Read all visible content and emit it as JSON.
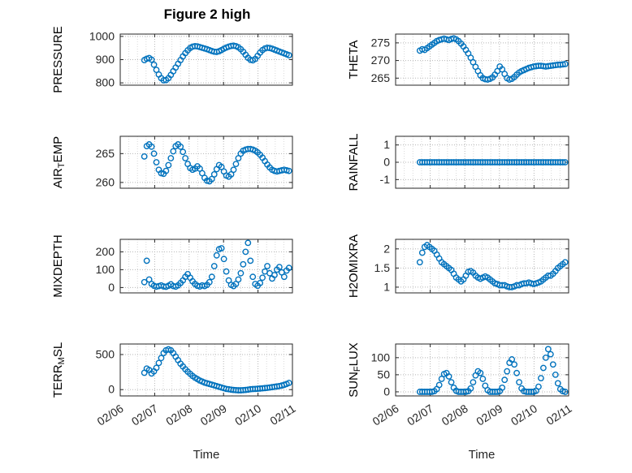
{
  "figure": {
    "title": "Figure 2 high",
    "xlabel": "Time",
    "colors": {
      "marker": "#0072BD",
      "grid": "#b5b5b5",
      "grid_minor": "#d9d9d9",
      "axis": "#262626"
    }
  },
  "chart_data": {
    "type": "scatter",
    "layout": "4x2 subplot grid, shared time axis",
    "x_label": "Time",
    "x_tick_labels": [
      "02/06",
      "02/07",
      "02/08",
      "02/09",
      "02/10",
      "02/11"
    ],
    "x_tick_values": [
      0,
      1,
      2,
      3,
      4,
      5
    ],
    "x_unit": "days since 02/06",
    "time_days": [
      0.7,
      0.77,
      0.84,
      0.91,
      0.98,
      1.05,
      1.12,
      1.19,
      1.26,
      1.33,
      1.4,
      1.47,
      1.54,
      1.61,
      1.68,
      1.75,
      1.82,
      1.89,
      1.96,
      2.03,
      2.1,
      2.17,
      2.24,
      2.31,
      2.38,
      2.45,
      2.52,
      2.59,
      2.66,
      2.73,
      2.8,
      2.87,
      2.94,
      3.01,
      3.08,
      3.15,
      3.22,
      3.29,
      3.36,
      3.43,
      3.5,
      3.57,
      3.64,
      3.71,
      3.78,
      3.85,
      3.92,
      3.99,
      4.06,
      4.13,
      4.2,
      4.27,
      4.34,
      4.41,
      4.48,
      4.55,
      4.62,
      4.69,
      4.76,
      4.83,
      4.9
    ],
    "subplots": [
      {
        "name": "PRESSURE",
        "ylabel_parts": [
          [
            "PRESSURE",
            false
          ]
        ],
        "yticks": [
          800,
          900,
          1000
        ],
        "ylim": [
          790,
          1010
        ],
        "values": [
          898,
          904,
          907,
          900,
          878,
          856,
          836,
          820,
          811,
          812,
          820,
          834,
          850,
          866,
          882,
          898,
          914,
          928,
          940,
          950,
          956,
          958,
          957,
          954,
          951,
          948,
          945,
          941,
          937,
          934,
          933,
          936,
          941,
          947,
          952,
          956,
          959,
          960,
          958,
          953,
          945,
          934,
          921,
          908,
          899,
          897,
          903,
          916,
          930,
          941,
          948,
          951,
          950,
          947,
          943,
          939,
          935,
          931,
          927,
          923,
          919
        ]
      },
      {
        "name": "THETA",
        "ylabel_parts": [
          [
            "THETA",
            false
          ]
        ],
        "yticks": [
          265,
          270,
          275
        ],
        "ylim": [
          263,
          277.5
        ],
        "values": [
          272.8,
          273.2,
          273.0,
          273.5,
          274.0,
          274.5,
          275.0,
          275.5,
          275.8,
          276.0,
          276.2,
          276.0,
          275.8,
          276.1,
          276.3,
          276.0,
          275.5,
          274.8,
          274.0,
          273.0,
          272.0,
          270.8,
          269.5,
          268.2,
          267.0,
          265.8,
          265.0,
          264.7,
          264.6,
          264.8,
          265.2,
          266.0,
          267.0,
          268.3,
          267.5,
          266.2,
          265.0,
          264.6,
          264.8,
          265.3,
          266.0,
          266.6,
          267.0,
          267.3,
          267.6,
          267.9,
          268.1,
          268.3,
          268.4,
          268.5,
          268.5,
          268.4,
          268.3,
          268.4,
          268.5,
          268.6,
          268.7,
          268.8,
          268.8,
          268.9,
          269.0
        ]
      },
      {
        "name": "AIR_TEMP",
        "ylabel_parts": [
          [
            "AIR",
            false
          ],
          [
            "T",
            true
          ],
          [
            "EMP",
            false
          ]
        ],
        "yticks": [
          260,
          265
        ],
        "ylim": [
          259,
          268
        ],
        "values": [
          264.5,
          266.3,
          266.6,
          266.2,
          265.0,
          263.5,
          262.2,
          261.6,
          261.5,
          262.0,
          263.0,
          264.2,
          265.4,
          266.3,
          266.6,
          266.2,
          265.3,
          264.2,
          263.2,
          262.5,
          262.2,
          262.4,
          262.8,
          262.4,
          261.6,
          260.8,
          260.3,
          260.2,
          260.6,
          261.4,
          262.3,
          263.0,
          262.7,
          261.9,
          261.2,
          261.0,
          261.4,
          262.2,
          263.2,
          264.2,
          265.0,
          265.5,
          265.7,
          265.8,
          265.8,
          265.7,
          265.5,
          265.2,
          264.8,
          264.3,
          263.7,
          263.1,
          262.6,
          262.2,
          262.0,
          261.9,
          262.0,
          262.1,
          262.2,
          262.1,
          262.0
        ]
      },
      {
        "name": "RAINFALL",
        "ylabel_parts": [
          [
            "RAINFALL",
            false
          ]
        ],
        "yticks": [
          -1,
          0,
          1
        ],
        "ylim": [
          -1.5,
          1.5
        ],
        "values": [
          0,
          0,
          0,
          0,
          0,
          0,
          0,
          0,
          0,
          0,
          0,
          0,
          0,
          0,
          0,
          0,
          0,
          0,
          0,
          0,
          0,
          0,
          0,
          0,
          0,
          0,
          0,
          0,
          0,
          0,
          0,
          0,
          0,
          0,
          0,
          0,
          0,
          0,
          0,
          0,
          0,
          0,
          0,
          0,
          0,
          0,
          0,
          0,
          0,
          0,
          0,
          0,
          0,
          0,
          0,
          0,
          0,
          0,
          0,
          0,
          0
        ]
      },
      {
        "name": "MIXDEPTH",
        "ylabel_parts": [
          [
            "MIXDEPTH",
            false
          ]
        ],
        "yticks": [
          0,
          100,
          200
        ],
        "ylim": [
          -30,
          270
        ],
        "values": [
          30,
          150,
          45,
          20,
          10,
          5,
          8,
          12,
          6,
          4,
          10,
          18,
          8,
          5,
          12,
          25,
          40,
          60,
          75,
          55,
          35,
          20,
          10,
          6,
          12,
          8,
          15,
          30,
          60,
          120,
          180,
          215,
          220,
          160,
          90,
          40,
          15,
          8,
          20,
          45,
          80,
          130,
          200,
          250,
          150,
          60,
          20,
          10,
          25,
          55,
          90,
          120,
          80,
          50,
          70,
          100,
          115,
          85,
          60,
          95,
          110
        ]
      },
      {
        "name": "H2OMIXRA",
        "ylabel_parts": [
          [
            "H2OMIXRA",
            false
          ]
        ],
        "yticks": [
          1,
          1.5,
          2
        ],
        "ylim": [
          0.85,
          2.25
        ],
        "values": [
          1.65,
          1.9,
          2.05,
          2.1,
          2.05,
          2.0,
          1.95,
          1.85,
          1.75,
          1.65,
          1.6,
          1.55,
          1.5,
          1.45,
          1.35,
          1.25,
          1.2,
          1.15,
          1.2,
          1.3,
          1.4,
          1.42,
          1.38,
          1.3,
          1.25,
          1.22,
          1.25,
          1.28,
          1.25,
          1.2,
          1.15,
          1.1,
          1.08,
          1.05,
          1.05,
          1.05,
          1.02,
          1.0,
          1.0,
          1.02,
          1.05,
          1.05,
          1.08,
          1.1,
          1.1,
          1.12,
          1.1,
          1.08,
          1.1,
          1.12,
          1.15,
          1.2,
          1.25,
          1.3,
          1.3,
          1.35,
          1.42,
          1.5,
          1.55,
          1.6,
          1.65
        ]
      },
      {
        "name": "TERR_MSL",
        "ylabel_parts": [
          [
            "TERR",
            false
          ],
          [
            "M",
            true
          ],
          [
            "SL",
            false
          ]
        ],
        "yticks": [
          0,
          500
        ],
        "ylim": [
          -90,
          650
        ],
        "values": [
          240,
          300,
          280,
          230,
          260,
          310,
          380,
          450,
          520,
          560,
          575,
          560,
          520,
          470,
          420,
          370,
          330,
          290,
          255,
          225,
          195,
          170,
          150,
          130,
          115,
          100,
          90,
          80,
          70,
          60,
          50,
          40,
          30,
          20,
          10,
          5,
          0,
          -5,
          -8,
          -10,
          -10,
          -8,
          -5,
          0,
          5,
          8,
          10,
          12,
          15,
          18,
          22,
          26,
          30,
          35,
          40,
          45,
          50,
          58,
          68,
          80,
          95
        ]
      },
      {
        "name": "SUN_FLUX",
        "ylabel_parts": [
          [
            "SUN",
            false
          ],
          [
            "F",
            true
          ],
          [
            "LUX",
            false
          ]
        ],
        "yticks": [
          0,
          50,
          100
        ],
        "ylim": [
          -12,
          140
        ],
        "values": [
          0,
          0,
          0,
          0,
          0,
          0,
          2,
          8,
          20,
          38,
          52,
          55,
          45,
          28,
          12,
          3,
          0,
          0,
          0,
          0,
          2,
          10,
          28,
          48,
          60,
          55,
          38,
          18,
          5,
          0,
          0,
          0,
          0,
          2,
          12,
          35,
          60,
          85,
          95,
          80,
          55,
          28,
          10,
          2,
          0,
          0,
          0,
          0,
          3,
          15,
          40,
          70,
          100,
          125,
          110,
          80,
          50,
          25,
          8,
          2,
          0
        ]
      }
    ]
  }
}
